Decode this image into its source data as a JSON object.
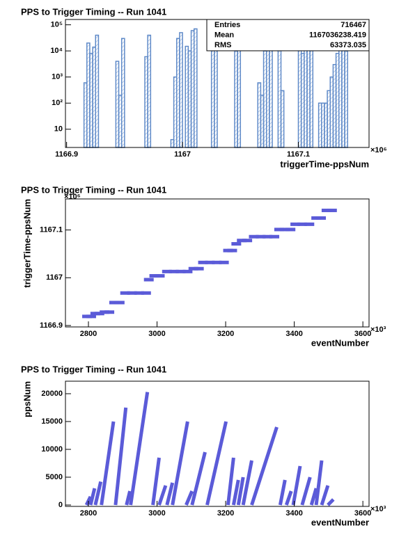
{
  "chart_data": [
    {
      "type": "histogram",
      "title": "PPS to Trigger Timing -- Run 1041",
      "x_label": "triggerTime-ppsNum",
      "x_multiplier": "×10⁶",
      "bins": [
        1166.9,
        1166.915,
        1166.9175,
        1166.92,
        1166.9225,
        1166.925,
        1166.9275,
        1166.9425,
        1166.945,
        1166.9475,
        1166.95,
        1166.9675,
        1166.97,
        1166.9725,
        1166.99,
        1166.9925,
        1166.995,
        1166.9975,
        1167.0,
        1167.0025,
        1167.005,
        1167.0075,
        1167.01,
        1167.0125,
        1167.025,
        1167.0275,
        1167.03,
        1167.045,
        1167.0475,
        1167.05,
        1167.065,
        1167.0675,
        1167.07,
        1167.0725,
        1167.075,
        1167.0775,
        1167.0825,
        1167.085,
        1167.0875,
        1167.1,
        1167.1025,
        1167.105,
        1167.1075,
        1167.11,
        1167.1125,
        1167.1175,
        1167.12,
        1167.1225,
        1167.125,
        1167.1275,
        1167.13,
        1167.1325,
        1167.135,
        1167.1375,
        1167.14,
        1167.1425,
        1167.16
      ],
      "counts": [
        0,
        600,
        20000,
        8000,
        14000,
        40000,
        0,
        4000,
        200,
        30000,
        0,
        6000,
        40000,
        0,
        4,
        1000,
        30000,
        50000,
        0,
        15000,
        10000,
        60000,
        70000,
        0,
        40000,
        60000,
        0,
        10000,
        40000,
        0,
        600,
        200,
        10000,
        12000,
        30000,
        0,
        80000,
        300,
        0,
        20000,
        8000,
        30000,
        15000,
        40000,
        0,
        100,
        100,
        100,
        300,
        1000,
        3000,
        8000,
        40000,
        15000,
        10000,
        0
      ],
      "color": "#5f8ac8",
      "log_y": true,
      "xlim": [
        1166.899,
        1167.161
      ],
      "xticks": [
        1166.9,
        1167,
        1167.1
      ],
      "ylim": [
        2,
        160000
      ],
      "yticks": [
        10,
        {
          "value": 100,
          "label": "10²"
        },
        {
          "value": 1000,
          "label": "10³"
        },
        {
          "value": 10000,
          "label": "10⁴"
        },
        {
          "value": 100000,
          "label": "10⁵"
        }
      ],
      "stats": {
        "labels": [
          "Entries",
          "Mean",
          "RMS"
        ],
        "values": [
          716467,
          1167036238.419,
          63373.035
        ]
      }
    },
    {
      "type": "scatter",
      "title": "PPS to Trigger Timing -- Run 1041",
      "x_label": "eventNumber",
      "y_label": "triggerTime-ppsNum",
      "x_multiplier": "×10³",
      "y_multiplier": "×10⁶",
      "x": [
        2796,
        2808,
        2820,
        2832,
        2847,
        2861,
        2875,
        2891,
        2907,
        2927,
        2948,
        2968,
        2976,
        2992,
        3008,
        3029,
        3049,
        3069,
        3089,
        3106,
        3122,
        3134,
        3154,
        3174,
        3195,
        3207,
        3219,
        3231,
        3247,
        3263,
        3282,
        3302,
        3322,
        3342,
        3356,
        3372,
        3389,
        3403,
        3423,
        3444,
        3464,
        3478,
        3494,
        3510
      ],
      "y": [
        1166.919,
        1166.919,
        1166.925,
        1166.925,
        1166.928,
        1166.928,
        1166.948,
        1166.948,
        1166.968,
        1166.968,
        1166.968,
        1166.968,
        1166.996,
        1167.004,
        1167.004,
        1167.013,
        1167.013,
        1167.013,
        1167.013,
        1167.019,
        1167.019,
        1167.032,
        1167.032,
        1167.032,
        1167.032,
        1167.057,
        1167.057,
        1167.071,
        1167.078,
        1167.078,
        1167.086,
        1167.086,
        1167.086,
        1167.086,
        1167.101,
        1167.101,
        1167.101,
        1167.112,
        1167.112,
        1167.112,
        1167.125,
        1167.125,
        1167.141,
        1167.141
      ],
      "color": "#5b5bd8",
      "xlim": [
        2733,
        3618
      ],
      "xticks": [
        2800,
        3000,
        3200,
        3400,
        3600
      ],
      "ylim": [
        1166.897,
        1167.165
      ],
      "yticks": [
        1166.9,
        1167,
        1167.1
      ]
    },
    {
      "type": "line",
      "title": "PPS to Trigger Timing -- Run 1041",
      "x_label": "eventNumber",
      "y_label": "ppsNum",
      "x_multiplier": "×10³",
      "x": [
        2794,
        2806,
        null,
        2806,
        2818,
        null,
        2820,
        2836,
        null,
        2838,
        2873,
        null,
        2879,
        2909,
        null,
        2911,
        2921,
        null,
        2923,
        2972,
        null,
        2988,
        3006,
        null,
        3006,
        3025,
        null,
        3029,
        3045,
        null,
        3045,
        3089,
        null,
        3085,
        3102,
        null,
        3102,
        3140,
        null,
        3146,
        3201,
        null,
        3207,
        3223,
        null,
        3223,
        3237,
        null,
        3237,
        3251,
        null,
        3251,
        3276,
        null,
        3276,
        3349,
        null,
        3359,
        3373,
        null,
        3377,
        3391,
        null,
        3397,
        3417,
        null,
        3423,
        3446,
        null,
        3450,
        3464,
        null,
        3464,
        3480,
        null,
        3480,
        3498,
        null,
        3498,
        3514
      ],
      "y": [
        0,
        1500,
        null,
        0,
        3000,
        null,
        0,
        4200,
        null,
        0,
        15000,
        null,
        0,
        17500,
        null,
        0,
        2500,
        null,
        0,
        20300,
        null,
        0,
        8500,
        null,
        0,
        3500,
        null,
        0,
        4000,
        null,
        0,
        15000,
        null,
        0,
        2500,
        null,
        0,
        9500,
        null,
        0,
        15000,
        null,
        0,
        8500,
        null,
        0,
        4500,
        null,
        0,
        5000,
        null,
        0,
        8000,
        null,
        0,
        14000,
        null,
        0,
        4500,
        null,
        0,
        2500,
        null,
        0,
        7000,
        null,
        0,
        5000,
        null,
        0,
        3000,
        null,
        0,
        8000,
        null,
        0,
        3500,
        null,
        0,
        1000
      ],
      "color": "#5b5bd8",
      "xlim": [
        2733,
        3618
      ],
      "xticks": [
        2800,
        3000,
        3200,
        3400,
        3600
      ],
      "ylim": [
        -250,
        22250
      ],
      "yticks": [
        0,
        5000,
        10000,
        15000,
        20000
      ]
    }
  ]
}
